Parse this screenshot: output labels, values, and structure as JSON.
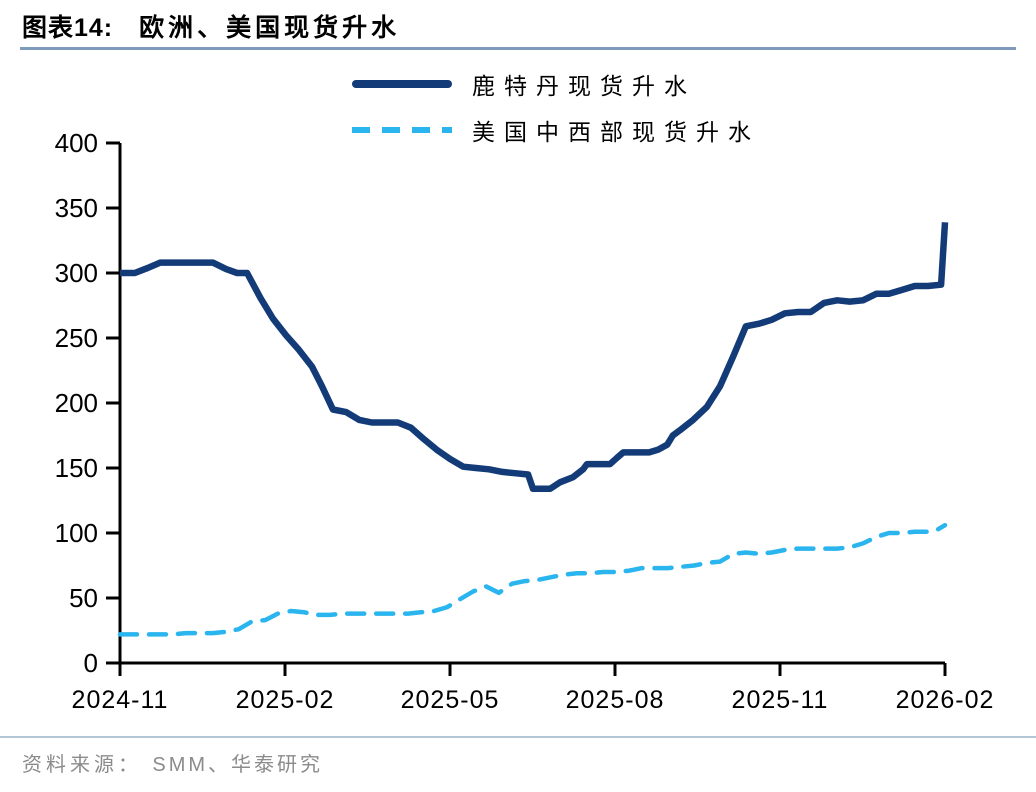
{
  "title": {
    "prefix": "图表14:",
    "text": "欧洲、美国现货升水"
  },
  "legend": {
    "items": [
      {
        "label": "鹿特丹现货升水",
        "color": "#133b78",
        "style": "solid"
      },
      {
        "label": "美国中西部现货升水",
        "color": "#2ab5ef",
        "style": "dashed"
      }
    ]
  },
  "source": {
    "prefix": "资料来源：",
    "text": "SMM、华泰研究"
  },
  "colors": {
    "series_rotterdam": "#133b78",
    "series_us_midwest": "#2ab5ef",
    "title_rule": "#7e9bbd",
    "footer_rule": "#b2c6d8",
    "source_text": "#8b8b8b",
    "axis": "#000000"
  },
  "chart_data": {
    "type": "line",
    "title": "欧洲、美国现货升水",
    "xlabel": "",
    "ylabel": "",
    "grid": false,
    "legend_position": "top",
    "x_axis": {
      "tick_labels": [
        "2024-11",
        "2025-02",
        "2025-05",
        "2025-08",
        "2025-11",
        "2026-02"
      ],
      "range_months": [
        0,
        15
      ]
    },
    "y_axis": {
      "ticks": [
        0,
        50,
        100,
        150,
        200,
        250,
        300,
        350,
        400
      ],
      "range": [
        0,
        400
      ]
    },
    "series": [
      {
        "name": "鹿特丹现货升水",
        "color": "#133b78",
        "style": "solid",
        "points": [
          [
            0.0,
            300
          ],
          [
            0.27,
            300
          ],
          [
            0.51,
            304
          ],
          [
            0.73,
            308
          ],
          [
            0.96,
            308
          ],
          [
            1.2,
            308
          ],
          [
            1.45,
            308
          ],
          [
            1.69,
            308
          ],
          [
            1.93,
            303
          ],
          [
            2.13,
            300
          ],
          [
            2.31,
            300
          ],
          [
            2.55,
            281
          ],
          [
            2.78,
            265
          ],
          [
            3.02,
            252
          ],
          [
            3.25,
            241
          ],
          [
            3.49,
            228
          ],
          [
            3.67,
            213
          ],
          [
            3.87,
            195
          ],
          [
            4.11,
            193
          ],
          [
            4.35,
            187
          ],
          [
            4.58,
            185
          ],
          [
            4.82,
            185
          ],
          [
            5.05,
            185
          ],
          [
            5.29,
            181
          ],
          [
            5.53,
            172
          ],
          [
            5.76,
            164
          ],
          [
            6.0,
            157
          ],
          [
            6.24,
            151
          ],
          [
            6.47,
            150
          ],
          [
            6.71,
            149
          ],
          [
            6.95,
            147
          ],
          [
            7.18,
            146
          ],
          [
            7.42,
            145
          ],
          [
            7.51,
            134
          ],
          [
            7.82,
            134
          ],
          [
            8.0,
            139
          ],
          [
            8.24,
            143
          ],
          [
            8.42,
            149
          ],
          [
            8.49,
            153
          ],
          [
            8.91,
            153
          ],
          [
            9.04,
            158
          ],
          [
            9.15,
            162
          ],
          [
            9.62,
            162
          ],
          [
            9.78,
            164
          ],
          [
            9.95,
            168
          ],
          [
            10.05,
            175
          ],
          [
            10.18,
            179
          ],
          [
            10.42,
            187
          ],
          [
            10.67,
            197
          ],
          [
            10.91,
            213
          ],
          [
            11.15,
            236
          ],
          [
            11.38,
            259
          ],
          [
            11.62,
            261
          ],
          [
            11.85,
            264
          ],
          [
            12.09,
            269
          ],
          [
            12.33,
            270
          ],
          [
            12.56,
            270
          ],
          [
            12.8,
            277
          ],
          [
            13.04,
            279
          ],
          [
            13.27,
            278
          ],
          [
            13.51,
            279
          ],
          [
            13.75,
            284
          ],
          [
            13.98,
            284
          ],
          [
            14.22,
            287
          ],
          [
            14.45,
            290
          ],
          [
            14.69,
            290
          ],
          [
            14.93,
            291
          ],
          [
            15.0,
            339
          ]
        ]
      },
      {
        "name": "美国中西部现货升水",
        "color": "#2ab5ef",
        "style": "dashed",
        "points": [
          [
            0.0,
            22
          ],
          [
            0.24,
            22
          ],
          [
            0.47,
            22
          ],
          [
            0.73,
            22
          ],
          [
            0.96,
            22
          ],
          [
            1.2,
            23
          ],
          [
            1.45,
            23
          ],
          [
            1.69,
            23
          ],
          [
            1.93,
            24
          ],
          [
            2.16,
            26
          ],
          [
            2.4,
            32
          ],
          [
            2.64,
            33
          ],
          [
            2.87,
            38
          ],
          [
            3.11,
            40
          ],
          [
            3.35,
            39
          ],
          [
            3.58,
            37
          ],
          [
            3.82,
            37
          ],
          [
            4.05,
            38
          ],
          [
            4.29,
            38
          ],
          [
            4.53,
            38
          ],
          [
            4.76,
            38
          ],
          [
            5.0,
            38
          ],
          [
            5.24,
            38
          ],
          [
            5.47,
            39
          ],
          [
            5.71,
            40
          ],
          [
            5.95,
            43
          ],
          [
            6.18,
            49
          ],
          [
            6.42,
            55
          ],
          [
            6.65,
            59
          ],
          [
            6.89,
            54
          ],
          [
            7.13,
            61
          ],
          [
            7.36,
            63
          ],
          [
            7.6,
            64
          ],
          [
            7.84,
            66
          ],
          [
            8.07,
            68
          ],
          [
            8.31,
            69
          ],
          [
            8.55,
            69
          ],
          [
            8.78,
            70
          ],
          [
            9.02,
            70
          ],
          [
            9.25,
            71
          ],
          [
            9.49,
            73
          ],
          [
            9.73,
            73
          ],
          [
            9.96,
            73
          ],
          [
            10.2,
            74
          ],
          [
            10.44,
            75
          ],
          [
            10.67,
            77
          ],
          [
            10.91,
            78
          ],
          [
            11.15,
            84
          ],
          [
            11.38,
            85
          ],
          [
            11.62,
            84
          ],
          [
            11.85,
            85
          ],
          [
            12.09,
            87
          ],
          [
            12.33,
            88
          ],
          [
            12.56,
            88
          ],
          [
            12.8,
            88
          ],
          [
            13.04,
            88
          ],
          [
            13.27,
            89
          ],
          [
            13.51,
            92
          ],
          [
            13.75,
            97
          ],
          [
            13.98,
            100
          ],
          [
            14.22,
            100
          ],
          [
            14.45,
            101
          ],
          [
            14.69,
            101
          ],
          [
            14.84,
            102
          ],
          [
            15.0,
            106
          ]
        ]
      }
    ]
  }
}
